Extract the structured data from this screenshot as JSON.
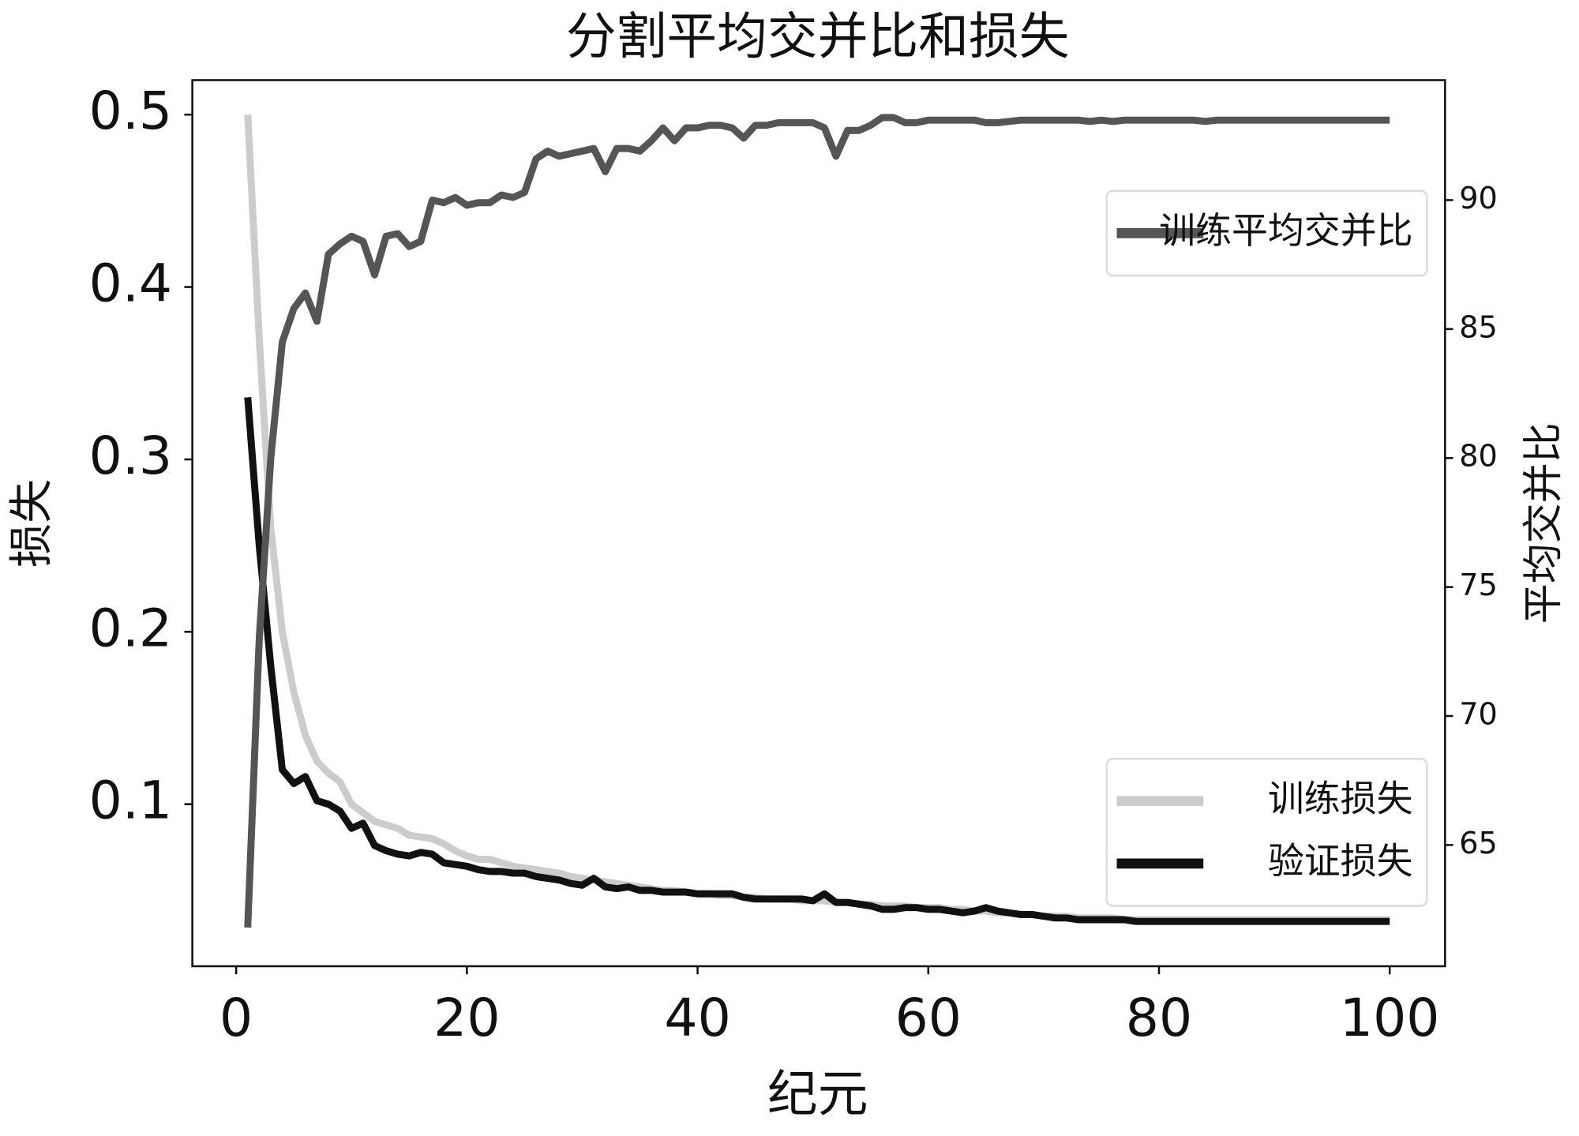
{
  "chart_data": {
    "type": "line",
    "title": "分割平均交并比和损失",
    "xlabel": "纪元",
    "ylabel": "损失",
    "y2label": "平均交并比",
    "x": [
      1,
      2,
      3,
      4,
      5,
      6,
      7,
      8,
      9,
      10,
      11,
      12,
      13,
      14,
      15,
      16,
      17,
      18,
      19,
      20,
      21,
      22,
      23,
      24,
      25,
      26,
      27,
      28,
      29,
      30,
      31,
      32,
      33,
      34,
      35,
      36,
      37,
      38,
      39,
      40,
      41,
      42,
      43,
      44,
      45,
      46,
      47,
      48,
      49,
      50,
      51,
      52,
      53,
      54,
      55,
      56,
      57,
      58,
      59,
      60,
      61,
      62,
      63,
      64,
      65,
      66,
      67,
      68,
      69,
      70,
      71,
      72,
      73,
      74,
      75,
      76,
      77,
      78,
      79,
      80,
      81,
      82,
      83,
      84,
      85,
      86,
      87,
      88,
      89,
      90,
      91,
      92,
      93,
      94,
      95,
      96,
      97,
      98,
      99,
      100
    ],
    "series": [
      {
        "name": "训练损失",
        "color": "#cccccc",
        "axis": "y",
        "values": [
          0.5,
          0.37,
          0.26,
          0.2,
          0.165,
          0.14,
          0.125,
          0.118,
          0.113,
          0.1,
          0.095,
          0.09,
          0.088,
          0.086,
          0.082,
          0.081,
          0.08,
          0.077,
          0.073,
          0.07,
          0.068,
          0.068,
          0.066,
          0.064,
          0.063,
          0.062,
          0.061,
          0.06,
          0.058,
          0.057,
          0.056,
          0.055,
          0.054,
          0.053,
          0.052,
          0.051,
          0.05,
          0.05,
          0.049,
          0.048,
          0.048,
          0.047,
          0.047,
          0.046,
          0.046,
          0.045,
          0.045,
          0.045,
          0.044,
          0.044,
          0.044,
          0.043,
          0.043,
          0.042,
          0.042,
          0.041,
          0.041,
          0.041,
          0.04,
          0.04,
          0.04,
          0.039,
          0.039,
          0.038,
          0.038,
          0.037,
          0.037,
          0.036,
          0.036,
          0.035,
          0.035,
          0.035,
          0.034,
          0.034,
          0.034,
          0.034,
          0.033,
          0.033,
          0.033,
          0.033,
          0.033,
          0.033,
          0.033,
          0.033,
          0.033,
          0.033,
          0.033,
          0.033,
          0.033,
          0.033,
          0.033,
          0.033,
          0.033,
          0.033,
          0.033,
          0.033,
          0.033,
          0.033,
          0.033,
          0.033
        ]
      },
      {
        "name": "验证损失",
        "color": "#111111",
        "axis": "y",
        "values": [
          0.336,
          0.25,
          0.18,
          0.12,
          0.112,
          0.116,
          0.102,
          0.1,
          0.096,
          0.086,
          0.089,
          0.076,
          0.073,
          0.071,
          0.07,
          0.072,
          0.071,
          0.066,
          0.065,
          0.064,
          0.062,
          0.061,
          0.061,
          0.06,
          0.06,
          0.058,
          0.057,
          0.056,
          0.054,
          0.053,
          0.057,
          0.052,
          0.051,
          0.052,
          0.05,
          0.05,
          0.049,
          0.049,
          0.049,
          0.048,
          0.048,
          0.048,
          0.048,
          0.046,
          0.045,
          0.045,
          0.045,
          0.045,
          0.045,
          0.044,
          0.048,
          0.043,
          0.043,
          0.042,
          0.041,
          0.039,
          0.039,
          0.04,
          0.04,
          0.039,
          0.039,
          0.038,
          0.037,
          0.038,
          0.04,
          0.038,
          0.037,
          0.036,
          0.036,
          0.035,
          0.034,
          0.034,
          0.033,
          0.033,
          0.033,
          0.033,
          0.033,
          0.032,
          0.032,
          0.032,
          0.032,
          0.032,
          0.032,
          0.032,
          0.032,
          0.032,
          0.032,
          0.032,
          0.032,
          0.032,
          0.032,
          0.032,
          0.032,
          0.032,
          0.032,
          0.032,
          0.032,
          0.032,
          0.032,
          0.032
        ]
      },
      {
        "name": "训练平均交并比",
        "color": "#555555",
        "axis": "y2",
        "values": [
          61.8,
          73,
          80,
          84.5,
          85.8,
          86.4,
          85.3,
          87.9,
          88.3,
          88.6,
          88.4,
          87.1,
          88.6,
          88.7,
          88.2,
          88.4,
          90,
          89.9,
          90.1,
          89.8,
          89.9,
          89.9,
          90.2,
          90.1,
          90.3,
          91.6,
          91.9,
          91.7,
          91.8,
          91.9,
          92,
          91.1,
          92,
          92,
          91.9,
          92.3,
          92.8,
          92.3,
          92.8,
          92.8,
          92.9,
          92.9,
          92.8,
          92.4,
          92.9,
          92.9,
          93,
          93,
          93,
          93,
          92.8,
          91.7,
          92.7,
          92.7,
          92.9,
          93.2,
          93.2,
          93,
          93,
          93.1,
          93.1,
          93.1,
          93.1,
          93.1,
          93,
          93,
          93.05,
          93.1,
          93.1,
          93.1,
          93.1,
          93.1,
          93.1,
          93.05,
          93.1,
          93.05,
          93.1,
          93.1,
          93.1,
          93.1,
          93.1,
          93.1,
          93.1,
          93.05,
          93.1,
          93.1,
          93.1,
          93.1,
          93.1,
          93.1,
          93.1,
          93.1,
          93.1,
          93.1,
          93.1,
          93.1,
          93.1,
          93.1,
          93.1,
          93.1
        ]
      }
    ],
    "xlim": [
      -3.8,
      104.8
    ],
    "xticks": [
      0,
      20,
      40,
      60,
      80,
      100
    ],
    "ylim": [
      0.006,
      0.52
    ],
    "yticks": [
      0.1,
      0.2,
      0.3,
      0.4,
      0.5
    ],
    "y2lim": [
      60.3,
      94.65
    ],
    "y2ticks": [
      65,
      70,
      75,
      80,
      85,
      90
    ],
    "legend_loc": "lower right",
    "legend2_loc": "upper right"
  }
}
